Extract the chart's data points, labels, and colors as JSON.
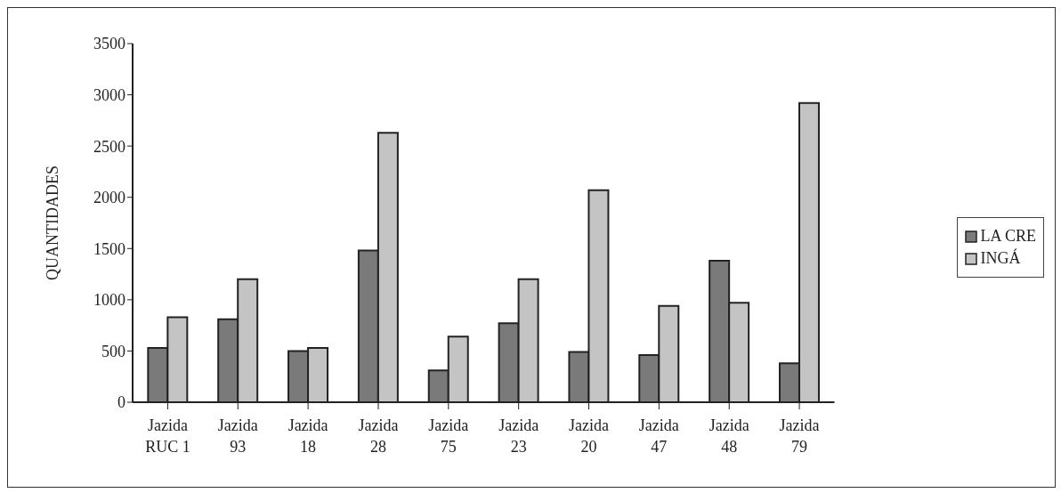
{
  "chart_data": {
    "type": "bar",
    "ylabel": "QUANTIDADES",
    "categories": [
      "Jazida\nRUC 1",
      "Jazida\n93",
      "Jazida\n18",
      "Jazida\n28",
      "Jazida\n75",
      "Jazida\n23",
      "Jazida\n20",
      "Jazida\n47",
      "Jazida\n48",
      "Jazida\n79"
    ],
    "series": [
      {
        "name": "LA CRE",
        "color": "#7a7a7a",
        "values": [
          530,
          810,
          500,
          1480,
          310,
          770,
          490,
          460,
          1380,
          380
        ]
      },
      {
        "name": "INGÁ",
        "color": "#c4c4c4",
        "values": [
          830,
          1200,
          530,
          2630,
          640,
          1200,
          2070,
          940,
          970,
          2920
        ]
      }
    ],
    "ylim": [
      0,
      3500
    ],
    "yticks": [
      0,
      500,
      1000,
      1500,
      2000,
      2500,
      3000,
      3500
    ],
    "grid": false,
    "legend": "right"
  }
}
